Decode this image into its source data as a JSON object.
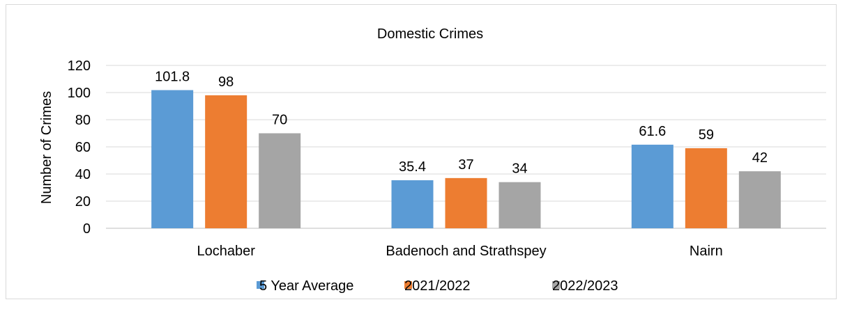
{
  "chart_data": {
    "type": "bar",
    "title": "Domestic Crimes",
    "xlabel": "",
    "ylabel": "Number of Crimes",
    "categories": [
      "Lochaber",
      "Badenoch and Strathspey",
      "Nairn"
    ],
    "series": [
      {
        "name": "5 Year Average",
        "values": [
          101.8,
          35.4,
          61.6
        ],
        "color": "#5b9bd5"
      },
      {
        "name": "2021/2022",
        "values": [
          98,
          37,
          59
        ],
        "color": "#ed7d31"
      },
      {
        "name": "2022/2023",
        "values": [
          70,
          34,
          42
        ],
        "color": "#a5a5a5"
      }
    ],
    "ylim": [
      0,
      120
    ],
    "yticks": [
      "0",
      "20",
      "40",
      "60",
      "80",
      "100",
      "120"
    ],
    "data_labels": [
      [
        "101.8",
        "35.4",
        "61.6"
      ],
      [
        "98",
        "37",
        "59"
      ],
      [
        "70",
        "34",
        "42"
      ]
    ],
    "grid": true,
    "legend": "bottom"
  }
}
